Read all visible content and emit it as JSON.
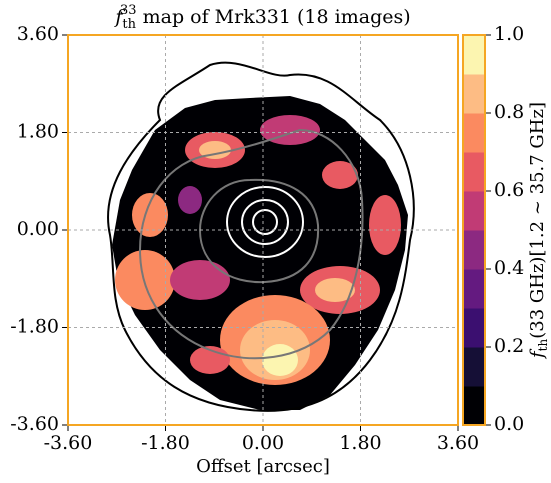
{
  "chart_data": {
    "type": "map",
    "title": {
      "base": "f",
      "sub": "th",
      "sup": "33",
      "text": " map of Mrk331 (18 images)"
    },
    "xlabel": "Offset [arcsec]",
    "colorbar_label": {
      "base": "f",
      "sub": "th",
      "text": "(33 GHz)[1.2 ~ 35.7 GHz]"
    },
    "xlim": [
      -3.6,
      3.6
    ],
    "ylim": [
      -3.6,
      3.6
    ],
    "xticks": [
      {
        "value": -3.6,
        "label": "-3.60"
      },
      {
        "value": -1.8,
        "label": "-1.80"
      },
      {
        "value": 0,
        "label": "0.00"
      },
      {
        "value": 1.8,
        "label": "1.80"
      },
      {
        "value": 3.6,
        "label": "3.60"
      }
    ],
    "yticks": [
      {
        "value": -3.6,
        "label": "-3.60"
      },
      {
        "value": -1.8,
        "label": "-1.80"
      },
      {
        "value": 0,
        "label": "0.00"
      },
      {
        "value": 1.8,
        "label": "1.80"
      },
      {
        "value": 3.6,
        "label": "3.60"
      }
    ],
    "zlim": [
      0,
      1
    ],
    "zticks": [
      {
        "value": 0,
        "label": "0.0"
      },
      0.2,
      0.4,
      0.6,
      0.8,
      {
        "value": 1,
        "label": "1.0"
      }
    ],
    "colormap": [
      "#000004",
      "#150f36",
      "#3b0f70",
      "#641a80",
      "#8c2981",
      "#c13b75",
      "#e85a62",
      "#fb8a60",
      "#fdbc84",
      "#fcf5b0"
    ],
    "grid": true,
    "frame_color": "#f5a623"
  }
}
